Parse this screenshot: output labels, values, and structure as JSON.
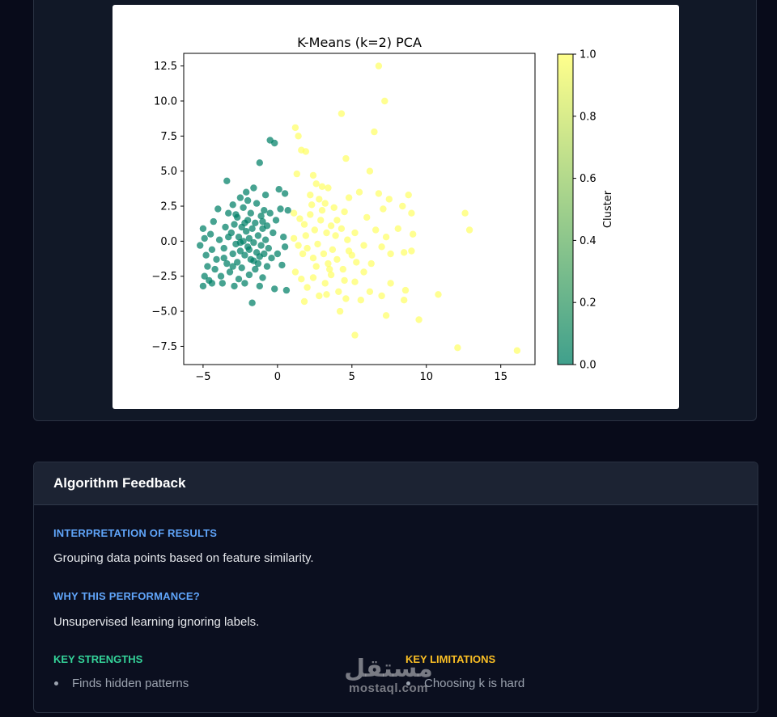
{
  "chart_data": {
    "type": "scatter",
    "title": "K-Means (k=2) PCA",
    "xlabel": "",
    "ylabel": "",
    "xlim": [
      -6.3,
      17.3
    ],
    "ylim": [
      -8.8,
      13.4
    ],
    "xticks": [
      -5,
      0,
      5,
      10,
      15
    ],
    "yticks": [
      -7.5,
      -5.0,
      -2.5,
      0.0,
      2.5,
      5.0,
      7.5,
      10.0,
      12.5
    ],
    "xtick_labels": [
      "−5",
      "0",
      "5",
      "10",
      "15"
    ],
    "ytick_labels": [
      "−7.5",
      "−5.0",
      "−2.5",
      "0.0",
      "2.5",
      "5.0",
      "7.5",
      "10.0",
      "12.5"
    ],
    "grid": false,
    "colorbar": {
      "label": "Cluster",
      "range": [
        0,
        1
      ],
      "ticks": [
        0.0,
        0.2,
        0.4,
        0.6,
        0.8,
        1.0
      ],
      "tick_labels": [
        "0.0",
        "0.2",
        "0.4",
        "0.6",
        "0.8",
        "1.0"
      ],
      "colormap": "summer",
      "color_low": "#008066",
      "color_high": "#ffff66"
    },
    "series": [
      {
        "cluster": 0,
        "color": "#008066",
        "points": [
          [
            -5.2,
            -0.3
          ],
          [
            -5.0,
            0.9
          ],
          [
            -4.9,
            0.2
          ],
          [
            -4.8,
            -1.0
          ],
          [
            -4.7,
            -1.8
          ],
          [
            -4.9,
            -2.5
          ],
          [
            -5.0,
            -3.2
          ],
          [
            -4.6,
            -2.8
          ],
          [
            -4.5,
            0.5
          ],
          [
            -4.4,
            -0.6
          ],
          [
            -4.3,
            1.4
          ],
          [
            -4.2,
            -2.0
          ],
          [
            -4.1,
            -1.3
          ],
          [
            -4.0,
            2.3
          ],
          [
            -3.9,
            0.1
          ],
          [
            -3.8,
            -2.5
          ],
          [
            -3.7,
            -3.0
          ],
          [
            -3.6,
            -0.5
          ],
          [
            -3.5,
            1.0
          ],
          [
            -3.4,
            4.3
          ],
          [
            -3.4,
            -1.6
          ],
          [
            -3.3,
            2.0
          ],
          [
            -3.2,
            -2.2
          ],
          [
            -3.1,
            0.6
          ],
          [
            -3.0,
            -0.9
          ],
          [
            -3.0,
            2.6
          ],
          [
            -2.9,
            1.2
          ],
          [
            -2.9,
            -3.2
          ],
          [
            -2.8,
            -0.2
          ],
          [
            -2.7,
            1.7
          ],
          [
            -2.7,
            -1.5
          ],
          [
            -2.6,
            0.3
          ],
          [
            -2.6,
            -2.7
          ],
          [
            -2.5,
            3.1
          ],
          [
            -2.5,
            -0.7
          ],
          [
            -2.4,
            1.0
          ],
          [
            -2.4,
            -1.9
          ],
          [
            -2.3,
            0.0
          ],
          [
            -2.3,
            2.4
          ],
          [
            -2.2,
            -1.0
          ],
          [
            -2.2,
            -3.0
          ],
          [
            -2.1,
            0.7
          ],
          [
            -2.1,
            3.5
          ],
          [
            -2.0,
            -0.4
          ],
          [
            -2.0,
            1.5
          ],
          [
            -1.9,
            -2.4
          ],
          [
            -1.9,
            0.2
          ],
          [
            -1.8,
            2.0
          ],
          [
            -1.8,
            -1.3
          ],
          [
            -1.7,
            -4.4
          ],
          [
            -1.7,
            0.9
          ],
          [
            -1.6,
            -0.1
          ],
          [
            -1.6,
            3.8
          ],
          [
            -1.5,
            -2.0
          ],
          [
            -1.5,
            1.3
          ],
          [
            -1.4,
            -0.8
          ],
          [
            -1.4,
            2.7
          ],
          [
            -1.3,
            0.4
          ],
          [
            -1.3,
            -1.6
          ],
          [
            -1.2,
            5.6
          ],
          [
            -1.2,
            -3.2
          ],
          [
            -1.1,
            1.8
          ],
          [
            -1.1,
            -0.3
          ],
          [
            -1.0,
            0.9
          ],
          [
            -1.0,
            -2.6
          ],
          [
            -0.9,
            2.2
          ],
          [
            -0.9,
            -0.9
          ],
          [
            -0.8,
            0.1
          ],
          [
            -0.8,
            3.3
          ],
          [
            -0.7,
            -1.8
          ],
          [
            -0.7,
            1.1
          ],
          [
            -0.6,
            -0.5
          ],
          [
            -0.5,
            7.2
          ],
          [
            -0.5,
            2.0
          ],
          [
            -0.4,
            -1.2
          ],
          [
            -0.3,
            0.6
          ],
          [
            -0.2,
            7.0
          ],
          [
            -0.2,
            -3.4
          ],
          [
            -0.1,
            1.5
          ],
          [
            0.0,
            -0.9
          ],
          [
            0.1,
            3.7
          ],
          [
            0.2,
            2.3
          ],
          [
            0.3,
            -1.7
          ],
          [
            0.4,
            0.3
          ],
          [
            0.5,
            3.4
          ],
          [
            0.6,
            -3.5
          ],
          [
            0.7,
            2.2
          ],
          [
            0.5,
            -0.4
          ],
          [
            -3.6,
            -1.2
          ],
          [
            -4.4,
            -3.0
          ],
          [
            -3.0,
            -1.8
          ],
          [
            -2.0,
            2.9
          ],
          [
            -2.8,
            1.9
          ],
          [
            -3.3,
            0.3
          ],
          [
            -1.0,
            1.4
          ],
          [
            -2.5,
            -0.1
          ],
          [
            -1.9,
            -0.6
          ],
          [
            -1.2,
            -1.1
          ],
          [
            -2.2,
            1.3
          ],
          [
            -1.6,
            -1.4
          ]
        ]
      },
      {
        "cluster": 1,
        "color": "#ffff66",
        "points": [
          [
            6.8,
            12.5
          ],
          [
            7.2,
            10.0
          ],
          [
            4.3,
            9.1
          ],
          [
            1.2,
            8.1
          ],
          [
            1.4,
            7.5
          ],
          [
            1.6,
            6.5
          ],
          [
            1.9,
            6.4
          ],
          [
            6.5,
            7.8
          ],
          [
            4.6,
            5.9
          ],
          [
            6.2,
            5.0
          ],
          [
            1.3,
            4.8
          ],
          [
            2.4,
            4.7
          ],
          [
            2.6,
            4.1
          ],
          [
            3.0,
            3.9
          ],
          [
            3.4,
            3.8
          ],
          [
            2.2,
            3.3
          ],
          [
            2.8,
            3.0
          ],
          [
            3.2,
            2.7
          ],
          [
            3.8,
            2.4
          ],
          [
            4.5,
            2.1
          ],
          [
            4.8,
            3.1
          ],
          [
            5.5,
            3.5
          ],
          [
            6.8,
            3.4
          ],
          [
            7.5,
            3.0
          ],
          [
            8.8,
            3.3
          ],
          [
            7.1,
            2.3
          ],
          [
            8.4,
            2.5
          ],
          [
            9.0,
            2.0
          ],
          [
            1.1,
            2.0
          ],
          [
            1.5,
            1.6
          ],
          [
            1.8,
            1.2
          ],
          [
            2.2,
            1.9
          ],
          [
            2.5,
            0.8
          ],
          [
            2.9,
            1.5
          ],
          [
            3.3,
            0.6
          ],
          [
            3.6,
            1.1
          ],
          [
            3.9,
            0.4
          ],
          [
            4.3,
            0.9
          ],
          [
            4.7,
            0.1
          ],
          [
            5.2,
            0.6
          ],
          [
            6.0,
            1.7
          ],
          [
            7.3,
            0.3
          ],
          [
            8.1,
            0.9
          ],
          [
            9.1,
            0.5
          ],
          [
            12.6,
            2.0
          ],
          [
            12.9,
            0.8
          ],
          [
            1.1,
            0.2
          ],
          [
            1.4,
            -0.3
          ],
          [
            1.7,
            -0.9
          ],
          [
            2.0,
            -0.5
          ],
          [
            2.4,
            -1.2
          ],
          [
            2.7,
            -0.2
          ],
          [
            3.1,
            -0.9
          ],
          [
            3.4,
            -1.6
          ],
          [
            3.7,
            -0.6
          ],
          [
            4.0,
            -1.3
          ],
          [
            4.4,
            -2.0
          ],
          [
            4.8,
            -0.7
          ],
          [
            5.3,
            -1.5
          ],
          [
            5.8,
            -2.2
          ],
          [
            6.3,
            -1.6
          ],
          [
            7.0,
            -0.4
          ],
          [
            7.6,
            -0.9
          ],
          [
            8.5,
            -0.8
          ],
          [
            9.0,
            -0.7
          ],
          [
            1.2,
            -2.2
          ],
          [
            1.6,
            -2.7
          ],
          [
            2.0,
            -3.3
          ],
          [
            2.4,
            -2.6
          ],
          [
            2.8,
            -3.9
          ],
          [
            3.2,
            -3.0
          ],
          [
            3.6,
            -2.4
          ],
          [
            4.1,
            -3.6
          ],
          [
            4.6,
            -4.1
          ],
          [
            5.2,
            -2.9
          ],
          [
            5.6,
            -4.2
          ],
          [
            6.2,
            -3.6
          ],
          [
            7.0,
            -3.9
          ],
          [
            7.6,
            -3.0
          ],
          [
            8.6,
            -3.5
          ],
          [
            8.5,
            -4.2
          ],
          [
            10.8,
            -3.8
          ],
          [
            1.8,
            -4.3
          ],
          [
            7.3,
            -5.3
          ],
          [
            9.5,
            -5.6
          ],
          [
            5.2,
            -6.7
          ],
          [
            12.1,
            -7.6
          ],
          [
            16.1,
            -7.8
          ],
          [
            3.3,
            -3.8
          ],
          [
            4.2,
            -5.0
          ],
          [
            2.6,
            -1.8
          ],
          [
            3.0,
            2.2
          ],
          [
            4.0,
            1.5
          ],
          [
            5.0,
            -1.0
          ],
          [
            1.9,
            0.4
          ],
          [
            3.5,
            -2.0
          ],
          [
            4.5,
            -2.8
          ],
          [
            2.3,
            2.6
          ],
          [
            5.8,
            -0.3
          ],
          [
            6.6,
            0.8
          ]
        ]
      }
    ]
  },
  "feedback": {
    "title": "Algorithm Feedback",
    "interpretation_title": "INTERPRETATION OF RESULTS",
    "interpretation_text": "Grouping data points based on feature similarity.",
    "performance_title": "WHY THIS PERFORMANCE?",
    "performance_text": "Unsupervised learning ignoring labels.",
    "strengths_title": "KEY STRENGTHS",
    "strengths": [
      "Finds hidden patterns"
    ],
    "limitations_title": "KEY LIMITATIONS",
    "limitations": [
      "Choosing k is hard"
    ],
    "colors": {
      "section_title": "#60a5fa",
      "strengths_title": "#34d399",
      "limitations_title": "#fbbf24"
    }
  },
  "watermark": {
    "arabic": "مستقل",
    "latin": "mostaql.com"
  }
}
